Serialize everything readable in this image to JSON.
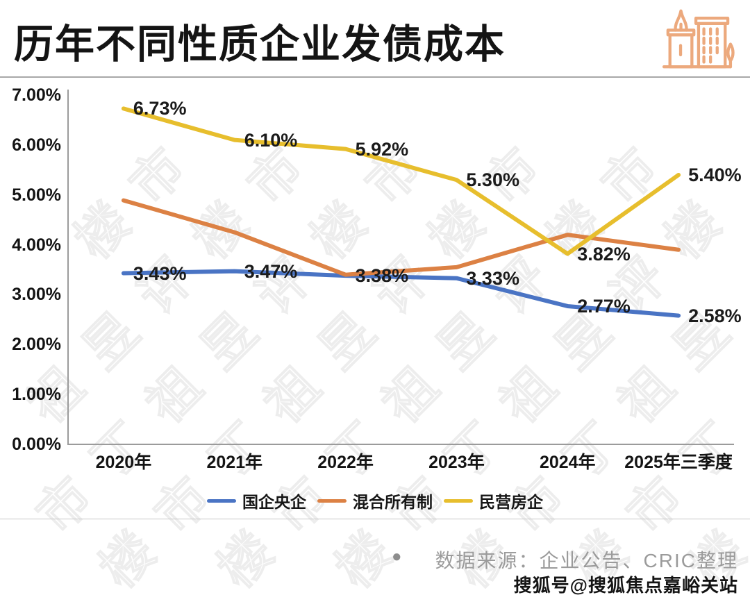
{
  "header": {
    "title": "历年不同性质企业发债成本",
    "icon": "buildings-icon"
  },
  "chart_data": {
    "type": "line",
    "title": "历年不同性质企业发债成本",
    "categories": [
      "2020年",
      "2021年",
      "2022年",
      "2023年",
      "2024年",
      "2025年三季度"
    ],
    "series": [
      {
        "name": "国企央企",
        "color": "#4A74C4",
        "values": [
          3.43,
          3.47,
          3.38,
          3.33,
          2.77,
          2.58
        ],
        "point_labels": [
          "3.43%",
          "3.47%",
          "3.38%",
          "3.33%",
          "2.77%",
          "2.58%"
        ]
      },
      {
        "name": "混合所有制",
        "color": "#DC8144",
        "values": [
          4.89,
          4.25,
          3.4,
          3.55,
          4.2,
          3.9
        ],
        "point_labels": [
          "",
          "",
          "",
          "",
          "",
          ""
        ]
      },
      {
        "name": "民营房企",
        "color": "#E7BE2D",
        "values": [
          6.73,
          6.1,
          5.92,
          5.3,
          3.82,
          5.4
        ],
        "point_labels": [
          "6.73%",
          "6.10%",
          "5.92%",
          "5.30%",
          "3.82%",
          "5.40%"
        ]
      }
    ],
    "ylim": [
      0,
      7
    ],
    "yticks": [
      "7.00%",
      "6.00%",
      "5.00%",
      "4.00%",
      "3.00%",
      "2.00%",
      "1.00%",
      "0.00%"
    ],
    "xlabel": "",
    "ylabel": "",
    "grid": false,
    "legend_position": "bottom"
  },
  "footer": {
    "bullet": "●",
    "source_text": "数据来源：企业公告、CRIC整理"
  },
  "watermarks": {
    "background_text": "丁祖昱评楼市",
    "sohu_badge": "搜狐号@搜狐焦点嘉峪关站"
  },
  "colors": {
    "series_blue": "#4A74C4",
    "series_orange": "#DC8144",
    "series_yellow": "#E7BE2D",
    "icon_orange": "#ECA97D",
    "axis_gray": "#9b9b9b"
  }
}
